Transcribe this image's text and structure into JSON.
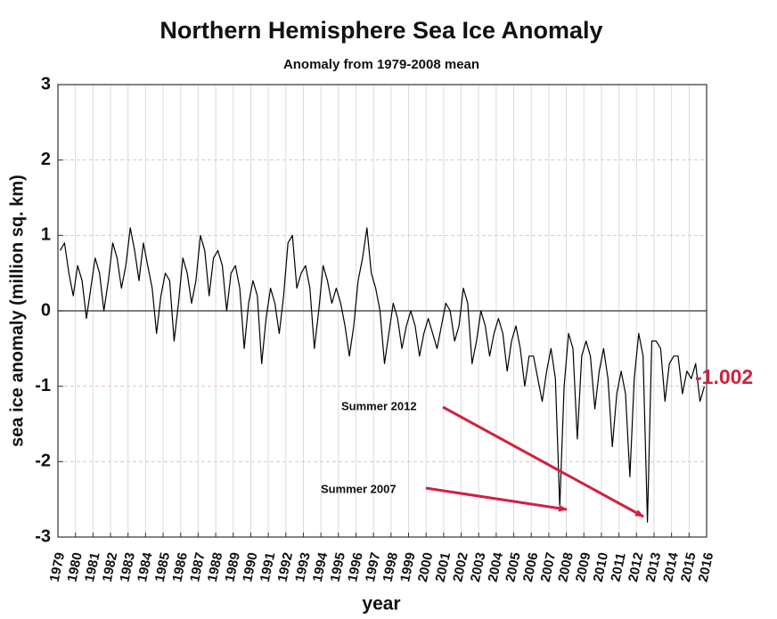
{
  "chart_data": {
    "type": "line",
    "title": "Northern Hemisphere Sea Ice Anomaly",
    "subtitle": "Anomaly from 1979-2008 mean",
    "y_label": "sea ice anomaly (million sq. km)",
    "x_label": "year",
    "xlim": [
      1979,
      2016
    ],
    "ylim": [
      -3,
      3
    ],
    "yticks": [
      -3,
      -2,
      -1,
      0,
      1,
      2,
      3
    ],
    "xticks": [
      1979,
      1980,
      1981,
      1982,
      1983,
      1984,
      1985,
      1986,
      1987,
      1988,
      1989,
      1990,
      1991,
      1992,
      1993,
      1994,
      1995,
      1996,
      1997,
      1998,
      1999,
      2000,
      2001,
      2002,
      2003,
      2004,
      2005,
      2006,
      2007,
      2008,
      2009,
      2010,
      2011,
      2012,
      2013,
      2014,
      2015,
      2016
    ],
    "grid": true,
    "series": [
      {
        "color": "#000000",
        "x": [
          1979.125,
          1979.375,
          1979.625,
          1979.875,
          1980.125,
          1980.375,
          1980.625,
          1980.875,
          1981.125,
          1981.375,
          1981.625,
          1981.875,
          1982.125,
          1982.375,
          1982.625,
          1982.875,
          1983.125,
          1983.375,
          1983.625,
          1983.875,
          1984.125,
          1984.375,
          1984.625,
          1984.875,
          1985.125,
          1985.375,
          1985.625,
          1985.875,
          1986.125,
          1986.375,
          1986.625,
          1986.875,
          1987.125,
          1987.375,
          1987.625,
          1987.875,
          1988.125,
          1988.375,
          1988.625,
          1988.875,
          1989.125,
          1989.375,
          1989.625,
          1989.875,
          1990.125,
          1990.375,
          1990.625,
          1990.875,
          1991.125,
          1991.375,
          1991.625,
          1991.875,
          1992.125,
          1992.375,
          1992.625,
          1992.875,
          1993.125,
          1993.375,
          1993.625,
          1993.875,
          1994.125,
          1994.375,
          1994.625,
          1994.875,
          1995.125,
          1995.375,
          1995.625,
          1995.875,
          1996.125,
          1996.375,
          1996.625,
          1996.875,
          1997.125,
          1997.375,
          1997.625,
          1997.875,
          1998.125,
          1998.375,
          1998.625,
          1998.875,
          1999.125,
          1999.375,
          1999.625,
          1999.875,
          2000.125,
          2000.375,
          2000.625,
          2000.875,
          2001.125,
          2001.375,
          2001.625,
          2001.875,
          2002.125,
          2002.375,
          2002.625,
          2002.875,
          2003.125,
          2003.375,
          2003.625,
          2003.875,
          2004.125,
          2004.375,
          2004.625,
          2004.875,
          2005.125,
          2005.375,
          2005.625,
          2005.875,
          2006.125,
          2006.375,
          2006.625,
          2006.875,
          2007.125,
          2007.375,
          2007.625,
          2007.875,
          2008.125,
          2008.375,
          2008.625,
          2008.875,
          2009.125,
          2009.375,
          2009.625,
          2009.875,
          2010.125,
          2010.375,
          2010.625,
          2010.875,
          2011.125,
          2011.375,
          2011.625,
          2011.875,
          2012.125,
          2012.375,
          2012.625,
          2012.875,
          2013.125,
          2013.375,
          2013.625,
          2013.875,
          2014.125,
          2014.375,
          2014.625,
          2014.875,
          2015.125,
          2015.375,
          2015.625,
          2015.875
        ],
        "values": [
          0.8,
          0.9,
          0.5,
          0.2,
          0.6,
          0.4,
          -0.1,
          0.3,
          0.7,
          0.5,
          0.0,
          0.4,
          0.9,
          0.7,
          0.3,
          0.6,
          1.1,
          0.8,
          0.4,
          0.9,
          0.6,
          0.3,
          -0.3,
          0.2,
          0.5,
          0.4,
          -0.4,
          0.1,
          0.7,
          0.5,
          0.1,
          0.4,
          1.0,
          0.8,
          0.2,
          0.7,
          0.8,
          0.6,
          0.0,
          0.5,
          0.6,
          0.3,
          -0.5,
          0.1,
          0.4,
          0.2,
          -0.7,
          -0.1,
          0.3,
          0.1,
          -0.3,
          0.2,
          0.9,
          1.0,
          0.3,
          0.5,
          0.6,
          0.3,
          -0.5,
          0.0,
          0.6,
          0.4,
          0.1,
          0.3,
          0.1,
          -0.2,
          -0.6,
          -0.2,
          0.4,
          0.7,
          1.1,
          0.5,
          0.3,
          0.0,
          -0.7,
          -0.3,
          0.1,
          -0.1,
          -0.5,
          -0.2,
          0.0,
          -0.2,
          -0.6,
          -0.3,
          -0.1,
          -0.3,
          -0.5,
          -0.2,
          0.1,
          0.0,
          -0.4,
          -0.2,
          0.3,
          0.1,
          -0.7,
          -0.4,
          0.0,
          -0.2,
          -0.6,
          -0.3,
          -0.1,
          -0.3,
          -0.8,
          -0.4,
          -0.2,
          -0.5,
          -1.0,
          -0.6,
          -0.6,
          -0.9,
          -1.2,
          -0.8,
          -0.5,
          -0.9,
          -2.6,
          -1.0,
          -0.3,
          -0.5,
          -1.7,
          -0.6,
          -0.4,
          -0.6,
          -1.3,
          -0.8,
          -0.5,
          -0.9,
          -1.8,
          -1.1,
          -0.8,
          -1.1,
          -2.2,
          -0.9,
          -0.3,
          -0.6,
          -2.8,
          -0.4,
          -0.4,
          -0.5,
          -1.2,
          -0.7,
          -0.6,
          -0.6,
          -1.1,
          -0.8,
          -0.9,
          -0.7,
          -1.2,
          -1.002
        ]
      }
    ],
    "annotations": [
      {
        "text": "Summer 2012"
      },
      {
        "text": "Summer 2007"
      },
      {
        "text": "-1.002"
      }
    ]
  }
}
